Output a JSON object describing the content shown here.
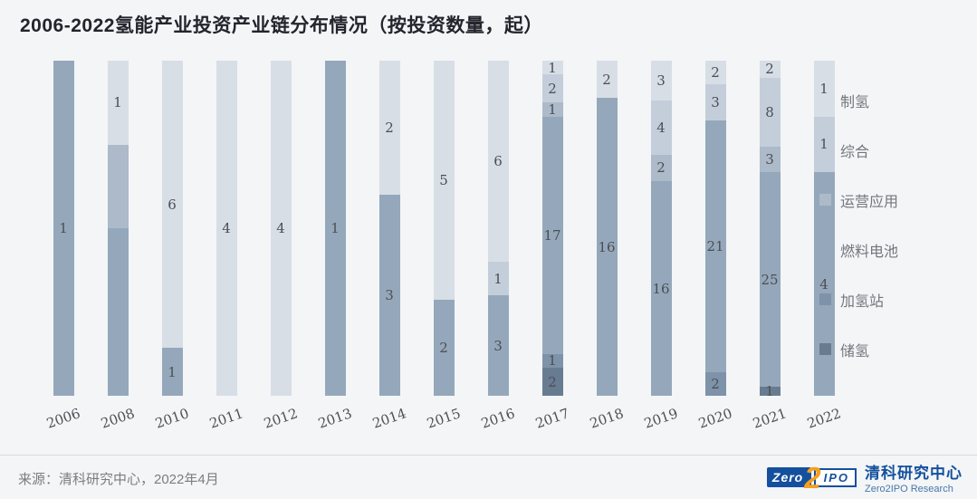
{
  "title": "2006-2022氢能产业投资产业链分布情况（按投资数量，起）",
  "colors": {
    "background": "#f3f5f7",
    "title_text": "#23242c",
    "bar_value_label": "#4b4e54",
    "axis_label": "#4e5056",
    "legend_text": "#73767c",
    "divider": "#d9dbde",
    "source_text": "#7b7d81",
    "logo_blue": "#14509d",
    "logo_orange": "#f5a01d"
  },
  "chart_data": {
    "type": "bar",
    "subtype": "stacked-100-percent-column",
    "title": "2006-2022氢能产业投资产业链分布情况（按投资数量，起）",
    "value_labels": true,
    "legend_position": "right",
    "grid": false,
    "y_axis_visible": false,
    "categories": [
      "2006",
      "2008",
      "2010",
      "2011",
      "2012",
      "2013",
      "2014",
      "2015",
      "2016",
      "2017",
      "2018",
      "2019",
      "2020",
      "2021",
      "2022"
    ],
    "series": [
      {
        "name": "制氢",
        "color": "#d8dee6",
        "values": [
          0,
          1,
          6,
          4,
          4,
          0,
          2,
          5,
          6,
          1,
          2,
          3,
          2,
          2,
          1
        ]
      },
      {
        "name": "综合",
        "color": "#c4ceda",
        "values": [
          0,
          0,
          0,
          0,
          0,
          0,
          0,
          0,
          1,
          2,
          0,
          4,
          3,
          8,
          1
        ]
      },
      {
        "name": "运营应用",
        "color": "#acbac9",
        "values": [
          0,
          1,
          0,
          0,
          0,
          0,
          0,
          0,
          0,
          1,
          0,
          2,
          0,
          3,
          0
        ]
      },
      {
        "name": "燃料电池",
        "color": "#95a8bb",
        "values": [
          1,
          2,
          1,
          0,
          0,
          1,
          3,
          2,
          3,
          17,
          16,
          16,
          21,
          25,
          4
        ]
      },
      {
        "name": "加氢站",
        "color": "#7e93a9",
        "values": [
          0,
          0,
          0,
          0,
          0,
          0,
          0,
          0,
          0,
          1,
          0,
          0,
          2,
          0,
          0
        ]
      },
      {
        "name": "储氢",
        "color": "#687c91",
        "values": [
          0,
          0,
          0,
          0,
          0,
          0,
          0,
          0,
          0,
          2,
          0,
          0,
          0,
          1,
          0
        ]
      }
    ],
    "hidden_value_labels": [
      {
        "category": "2008",
        "series": "运营应用"
      },
      {
        "category": "2008",
        "series": "燃料电池"
      }
    ]
  },
  "footer": {
    "source": "来源：清科研究中心，2022年4月"
  },
  "logo": {
    "zero": "Zero",
    "two": "2",
    "ipo": "IPO",
    "cn": "清科研究中心",
    "en": "Zero2IPO Research"
  }
}
